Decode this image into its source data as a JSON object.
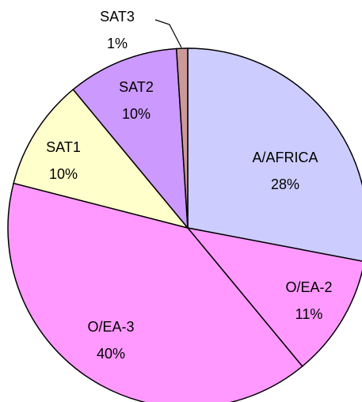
{
  "chart_data": {
    "type": "pie",
    "categories": [
      "A/AFRICA",
      "O/EA-2",
      "O/EA-3",
      "SAT1",
      "SAT2",
      "SAT3"
    ],
    "values": [
      28,
      11,
      40,
      10,
      10,
      1
    ],
    "value_labels": [
      "28%",
      "11%",
      "40%",
      "10%",
      "10%",
      "1%"
    ],
    "colors": [
      "#ccccff",
      "#ff99ff",
      "#ff99ff",
      "#ffffcc",
      "#cc99ff",
      "#cc9999"
    ]
  }
}
